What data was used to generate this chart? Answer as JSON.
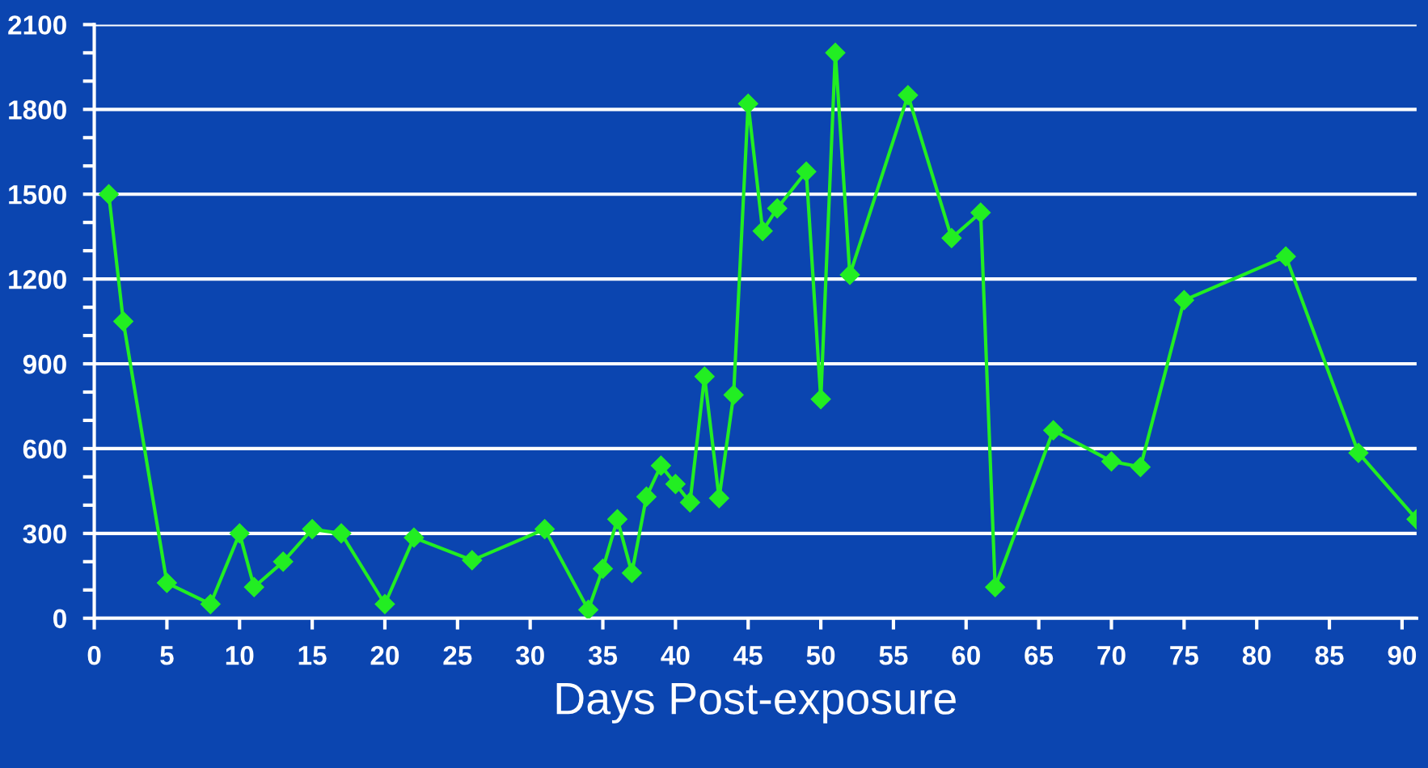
{
  "chart_data": {
    "type": "line",
    "xlabel": "Days Post-exposure",
    "x": [
      1,
      2,
      5,
      8,
      10,
      11,
      13,
      15,
      17,
      20,
      22,
      26,
      31,
      34,
      35,
      36,
      37,
      38,
      39,
      40,
      41,
      42,
      43,
      44,
      45,
      46,
      47,
      49,
      50,
      51,
      52,
      56,
      59,
      61,
      62,
      66,
      70,
      72,
      75,
      82,
      87,
      91
    ],
    "series": [
      {
        "color": "#22ee22",
        "values": [
          1500,
          1050,
          125,
          50,
          300,
          110,
          200,
          315,
          300,
          50,
          285,
          205,
          315,
          30,
          175,
          350,
          160,
          430,
          540,
          475,
          410,
          855,
          425,
          790,
          1820,
          1370,
          1450,
          1580,
          775,
          2000,
          1215,
          1850,
          1345,
          1435,
          110,
          665,
          555,
          535,
          1125,
          1280,
          585,
          350
        ]
      }
    ],
    "xlim": [
      0,
      91
    ],
    "xticks": [
      0,
      5,
      10,
      15,
      20,
      25,
      30,
      35,
      40,
      45,
      50,
      55,
      60,
      65,
      70,
      75,
      80,
      85,
      90
    ],
    "ylim": [
      0,
      2100
    ],
    "yticks": [
      0,
      {
        "value": 100,
        "label": null
      },
      {
        "value": 200,
        "label": null
      },
      300,
      {
        "value": 400,
        "label": null
      },
      {
        "value": 500,
        "label": null
      },
      600,
      {
        "value": 700,
        "label": null
      },
      {
        "value": 800,
        "label": null
      },
      900,
      {
        "value": 1000,
        "label": null
      },
      {
        "value": 1100,
        "label": null
      },
      1200,
      {
        "value": 1300,
        "label": null
      },
      {
        "value": 1400,
        "label": null
      },
      1500,
      {
        "value": 1600,
        "label": null
      },
      {
        "value": 1700,
        "label": null
      },
      1800,
      {
        "value": 1900,
        "label": null
      },
      {
        "value": 2000,
        "label": null
      },
      2100
    ],
    "grid": "y",
    "marker": "diamond",
    "line_style": "solid",
    "legend": false
  }
}
